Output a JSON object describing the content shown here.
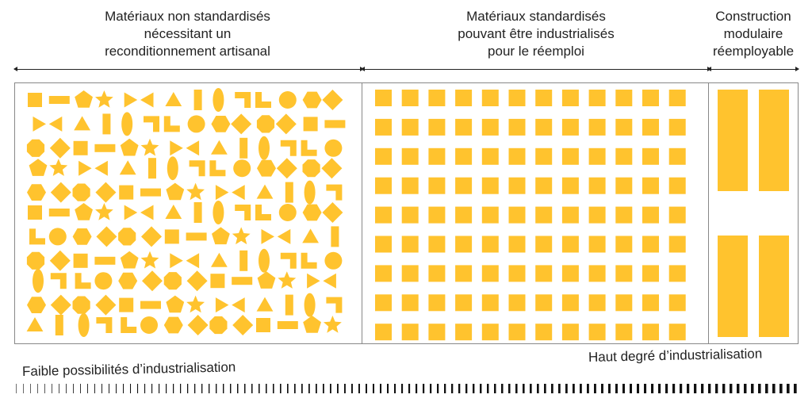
{
  "columns": {
    "artisanal": "Matériaux non standardisés\nnécessitant un\nreconditionnement artisanal",
    "industrial": "Matériaux standardisés\npouvant être industrialisés\npour le réemploi",
    "modular": "Construction\nmodulaire\nréemployable"
  },
  "scale": {
    "low": "Faible possibilités d’industrialisation",
    "high": "Haut degré d’industrialisation"
  },
  "colors": {
    "shape": "#FFC32E",
    "border": "#888888",
    "text": "#222222"
  },
  "icons": {
    "artisanal": "mixed-shapes",
    "industrial": "square-grid",
    "modular": "rectangle-modules"
  }
}
